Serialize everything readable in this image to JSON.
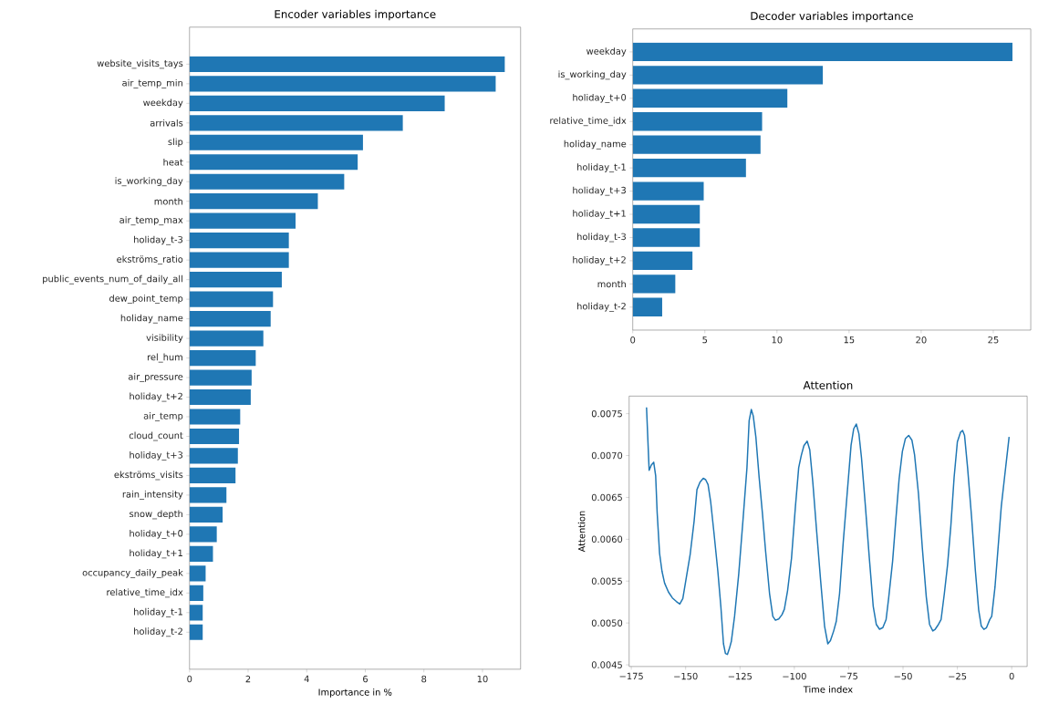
{
  "chart_data": [
    {
      "type": "bar",
      "orientation": "horizontal",
      "title": "Encoder variables importance",
      "xlabel": "Importance in %",
      "color": "#1f77b4",
      "categories": [
        "website_visits_tays",
        "air_temp_min",
        "weekday",
        "arrivals",
        "slip",
        "heat",
        "is_working_day",
        "month",
        "air_temp_max",
        "holiday_t-3",
        "ekströms_ratio",
        "public_events_num_of_daily_all",
        "dew_point_temp",
        "holiday_name",
        "visibility",
        "rel_hum",
        "air_pressure",
        "holiday_t+2",
        "air_temp",
        "cloud_count",
        "holiday_t+3",
        "ekströms_visits",
        "rain_intensity",
        "snow_depth",
        "holiday_t+0",
        "holiday_t+1",
        "occupancy_daily_peak",
        "relative_time_idx",
        "holiday_t-1",
        "holiday_t-2"
      ],
      "values": [
        10.76,
        10.45,
        8.71,
        7.28,
        5.92,
        5.74,
        5.28,
        4.38,
        3.62,
        3.39,
        3.39,
        3.15,
        2.85,
        2.77,
        2.52,
        2.26,
        2.12,
        2.09,
        1.73,
        1.69,
        1.65,
        1.57,
        1.26,
        1.13,
        0.93,
        0.8,
        0.55,
        0.47,
        0.45,
        0.45
      ],
      "xlim": [
        0,
        11.3
      ],
      "xticks": [
        0,
        2,
        4,
        6,
        8,
        10
      ]
    },
    {
      "type": "bar",
      "orientation": "horizontal",
      "title": "Decoder variables importance",
      "color": "#1f77b4",
      "categories": [
        "weekday",
        "is_working_day",
        "holiday_t+0",
        "relative_time_idx",
        "holiday_name",
        "holiday_t-1",
        "holiday_t+3",
        "holiday_t+1",
        "holiday_t-3",
        "holiday_t+2",
        "month",
        "holiday_t-2"
      ],
      "values": [
        26.33,
        13.18,
        10.72,
        8.97,
        8.86,
        7.85,
        4.92,
        4.65,
        4.65,
        4.14,
        2.95,
        2.04
      ],
      "xlim": [
        0,
        27.6
      ],
      "xticks": [
        0,
        5,
        10,
        15,
        20,
        25
      ]
    },
    {
      "type": "line",
      "title": "Attention",
      "xlabel": "Time index",
      "ylabel": "Attention",
      "color": "#1f77b4",
      "x": [
        -168,
        -166.8,
        -165.8,
        -164.7,
        -163.8,
        -163.1,
        -162,
        -160.9,
        -159.7,
        -157.9,
        -156.1,
        -154.3,
        -152.7,
        -151.3,
        -149.7,
        -147.9,
        -146.1,
        -144.8,
        -143.4,
        -141.9,
        -140.8,
        -139.7,
        -138.5,
        -137,
        -135.2,
        -133.8,
        -132.6,
        -131.7,
        -130.8,
        -129.9,
        -129,
        -127.5,
        -125.6,
        -123.6,
        -121.8,
        -120.8,
        -119.8,
        -118.9,
        -117.7,
        -116.2,
        -114.7,
        -113.2,
        -111.4,
        -109.9,
        -108.7,
        -107.2,
        -105.7,
        -104.6,
        -103.1,
        -101.3,
        -99.5,
        -98,
        -96.8,
        -95.6,
        -94.1,
        -92.9,
        -91.5,
        -89.7,
        -87.9,
        -86.1,
        -84.6,
        -83.4,
        -81.9,
        -80.7,
        -79.2,
        -77.5,
        -75.7,
        -73.9,
        -72.7,
        -71.5,
        -70.3,
        -69.1,
        -67.3,
        -65.5,
        -63.7,
        -62.3,
        -60.8,
        -59.3,
        -57.8,
        -56.6,
        -54.8,
        -53.3,
        -51.8,
        -50.3,
        -48.9,
        -47.4,
        -45.9,
        -44.7,
        -42.9,
        -41.1,
        -39.3,
        -37.8,
        -36.3,
        -35.2,
        -33.7,
        -32.5,
        -31,
        -29.5,
        -28,
        -26.5,
        -25,
        -23.5,
        -22.6,
        -21.7,
        -20.3,
        -18.5,
        -16.7,
        -15.2,
        -14,
        -12.8,
        -11.6,
        -10.1,
        -9.2,
        -7.7,
        -6.3,
        -4.8,
        -3.3,
        -1.2
      ],
      "values": [
        0.007575,
        0.006824,
        0.006886,
        0.00692,
        0.00676,
        0.006315,
        0.005832,
        0.00562,
        0.005477,
        0.005369,
        0.005299,
        0.005257,
        0.005226,
        0.005291,
        0.005542,
        0.005824,
        0.006218,
        0.006593,
        0.006681,
        0.006728,
        0.006712,
        0.006654,
        0.00645,
        0.006083,
        0.00562,
        0.005195,
        0.004751,
        0.004635,
        0.004624,
        0.004693,
        0.004778,
        0.005079,
        0.005581,
        0.006237,
        0.006855,
        0.007415,
        0.00755,
        0.007473,
        0.007222,
        0.00674,
        0.006315,
        0.005851,
        0.00535,
        0.005079,
        0.005033,
        0.005048,
        0.005098,
        0.005164,
        0.005388,
        0.005774,
        0.006392,
        0.006855,
        0.007002,
        0.007118,
        0.007172,
        0.007068,
        0.006681,
        0.006083,
        0.005504,
        0.004963,
        0.004751,
        0.00479,
        0.004905,
        0.005021,
        0.00535,
        0.005967,
        0.006546,
        0.007125,
        0.007319,
        0.007376,
        0.00726,
        0.006971,
        0.006392,
        0.005774,
        0.005195,
        0.004983,
        0.004925,
        0.004944,
        0.00504,
        0.005299,
        0.005736,
        0.006237,
        0.00672,
        0.007048,
        0.007203,
        0.007241,
        0.007183,
        0.00701,
        0.006546,
        0.00589,
        0.005311,
        0.004983,
        0.004905,
        0.004925,
        0.004983,
        0.00504,
        0.00535,
        0.005697,
        0.00616,
        0.006739,
        0.007164,
        0.00728,
        0.007299,
        0.007241,
        0.006855,
        0.006276,
        0.00562,
        0.005156,
        0.004963,
        0.004924,
        0.004944,
        0.005041,
        0.005079,
        0.005427,
        0.00589,
        0.006392,
        0.006739,
        0.007222
      ],
      "xlim": [
        -176,
        7.1
      ],
      "ylim": [
        0.00448,
        0.00771
      ],
      "xticks": [
        {
          "value": -175,
          "label": "−175"
        },
        {
          "value": -150,
          "label": "−150"
        },
        {
          "value": -125,
          "label": "−125"
        },
        {
          "value": -100,
          "label": "−100"
        },
        {
          "value": -75,
          "label": "−75"
        },
        {
          "value": -50,
          "label": "−50"
        },
        {
          "value": -25,
          "label": "−25"
        },
        {
          "value": 0,
          "label": "0"
        }
      ],
      "yticks": [
        {
          "value": 0.0045,
          "label": "0.0045"
        },
        {
          "value": 0.005,
          "label": "0.0050"
        },
        {
          "value": 0.0055,
          "label": "0.0055"
        },
        {
          "value": 0.006,
          "label": "0.0060"
        },
        {
          "value": 0.0065,
          "label": "0.0065"
        },
        {
          "value": 0.007,
          "label": "0.0070"
        },
        {
          "value": 0.0075,
          "label": "0.0075"
        }
      ]
    }
  ]
}
